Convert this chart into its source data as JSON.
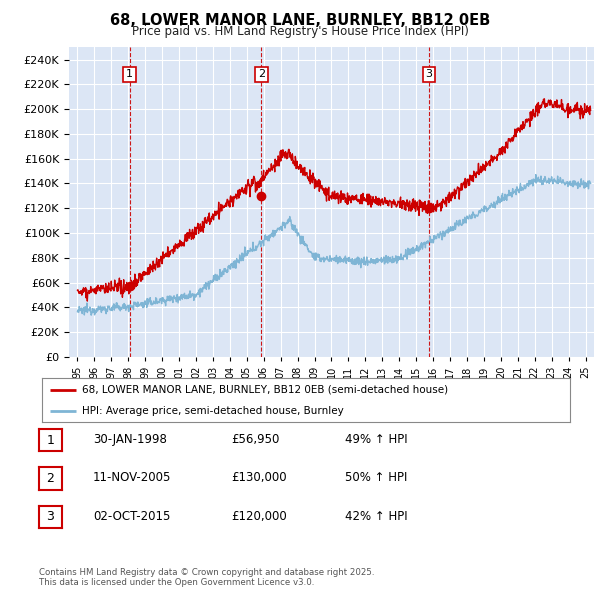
{
  "title": "68, LOWER MANOR LANE, BURNLEY, BB12 0EB",
  "subtitle": "Price paid vs. HM Land Registry's House Price Index (HPI)",
  "legend_line1": "68, LOWER MANOR LANE, BURNLEY, BB12 0EB (semi-detached house)",
  "legend_line2": "HPI: Average price, semi-detached house, Burnley",
  "transactions": [
    {
      "num": 1,
      "date": "30-JAN-1998",
      "price": 56950,
      "price_str": "£56,950",
      "pct": "49%",
      "dir": "↑",
      "label": "HPI",
      "year": 1998.08
    },
    {
      "num": 2,
      "date": "11-NOV-2005",
      "price": 130000,
      "price_str": "£130,000",
      "pct": "50%",
      "dir": "↑",
      "label": "HPI",
      "year": 2005.86
    },
    {
      "num": 3,
      "date": "02-OCT-2015",
      "price": 120000,
      "price_str": "£120,000",
      "pct": "42%",
      "dir": "↑",
      "label": "HPI",
      "year": 2015.75
    }
  ],
  "ylim": [
    0,
    250000
  ],
  "yticks": [
    0,
    20000,
    40000,
    60000,
    80000,
    100000,
    120000,
    140000,
    160000,
    180000,
    200000,
    220000,
    240000
  ],
  "xmin": 1994.5,
  "xmax": 2025.5,
  "background_color": "#dce6f5",
  "red_line_color": "#cc0000",
  "blue_line_color": "#7fb5d5",
  "vline_color": "#cc0000",
  "grid_color": "#ffffff",
  "footnote": "Contains HM Land Registry data © Crown copyright and database right 2025.\nThis data is licensed under the Open Government Licence v3.0."
}
